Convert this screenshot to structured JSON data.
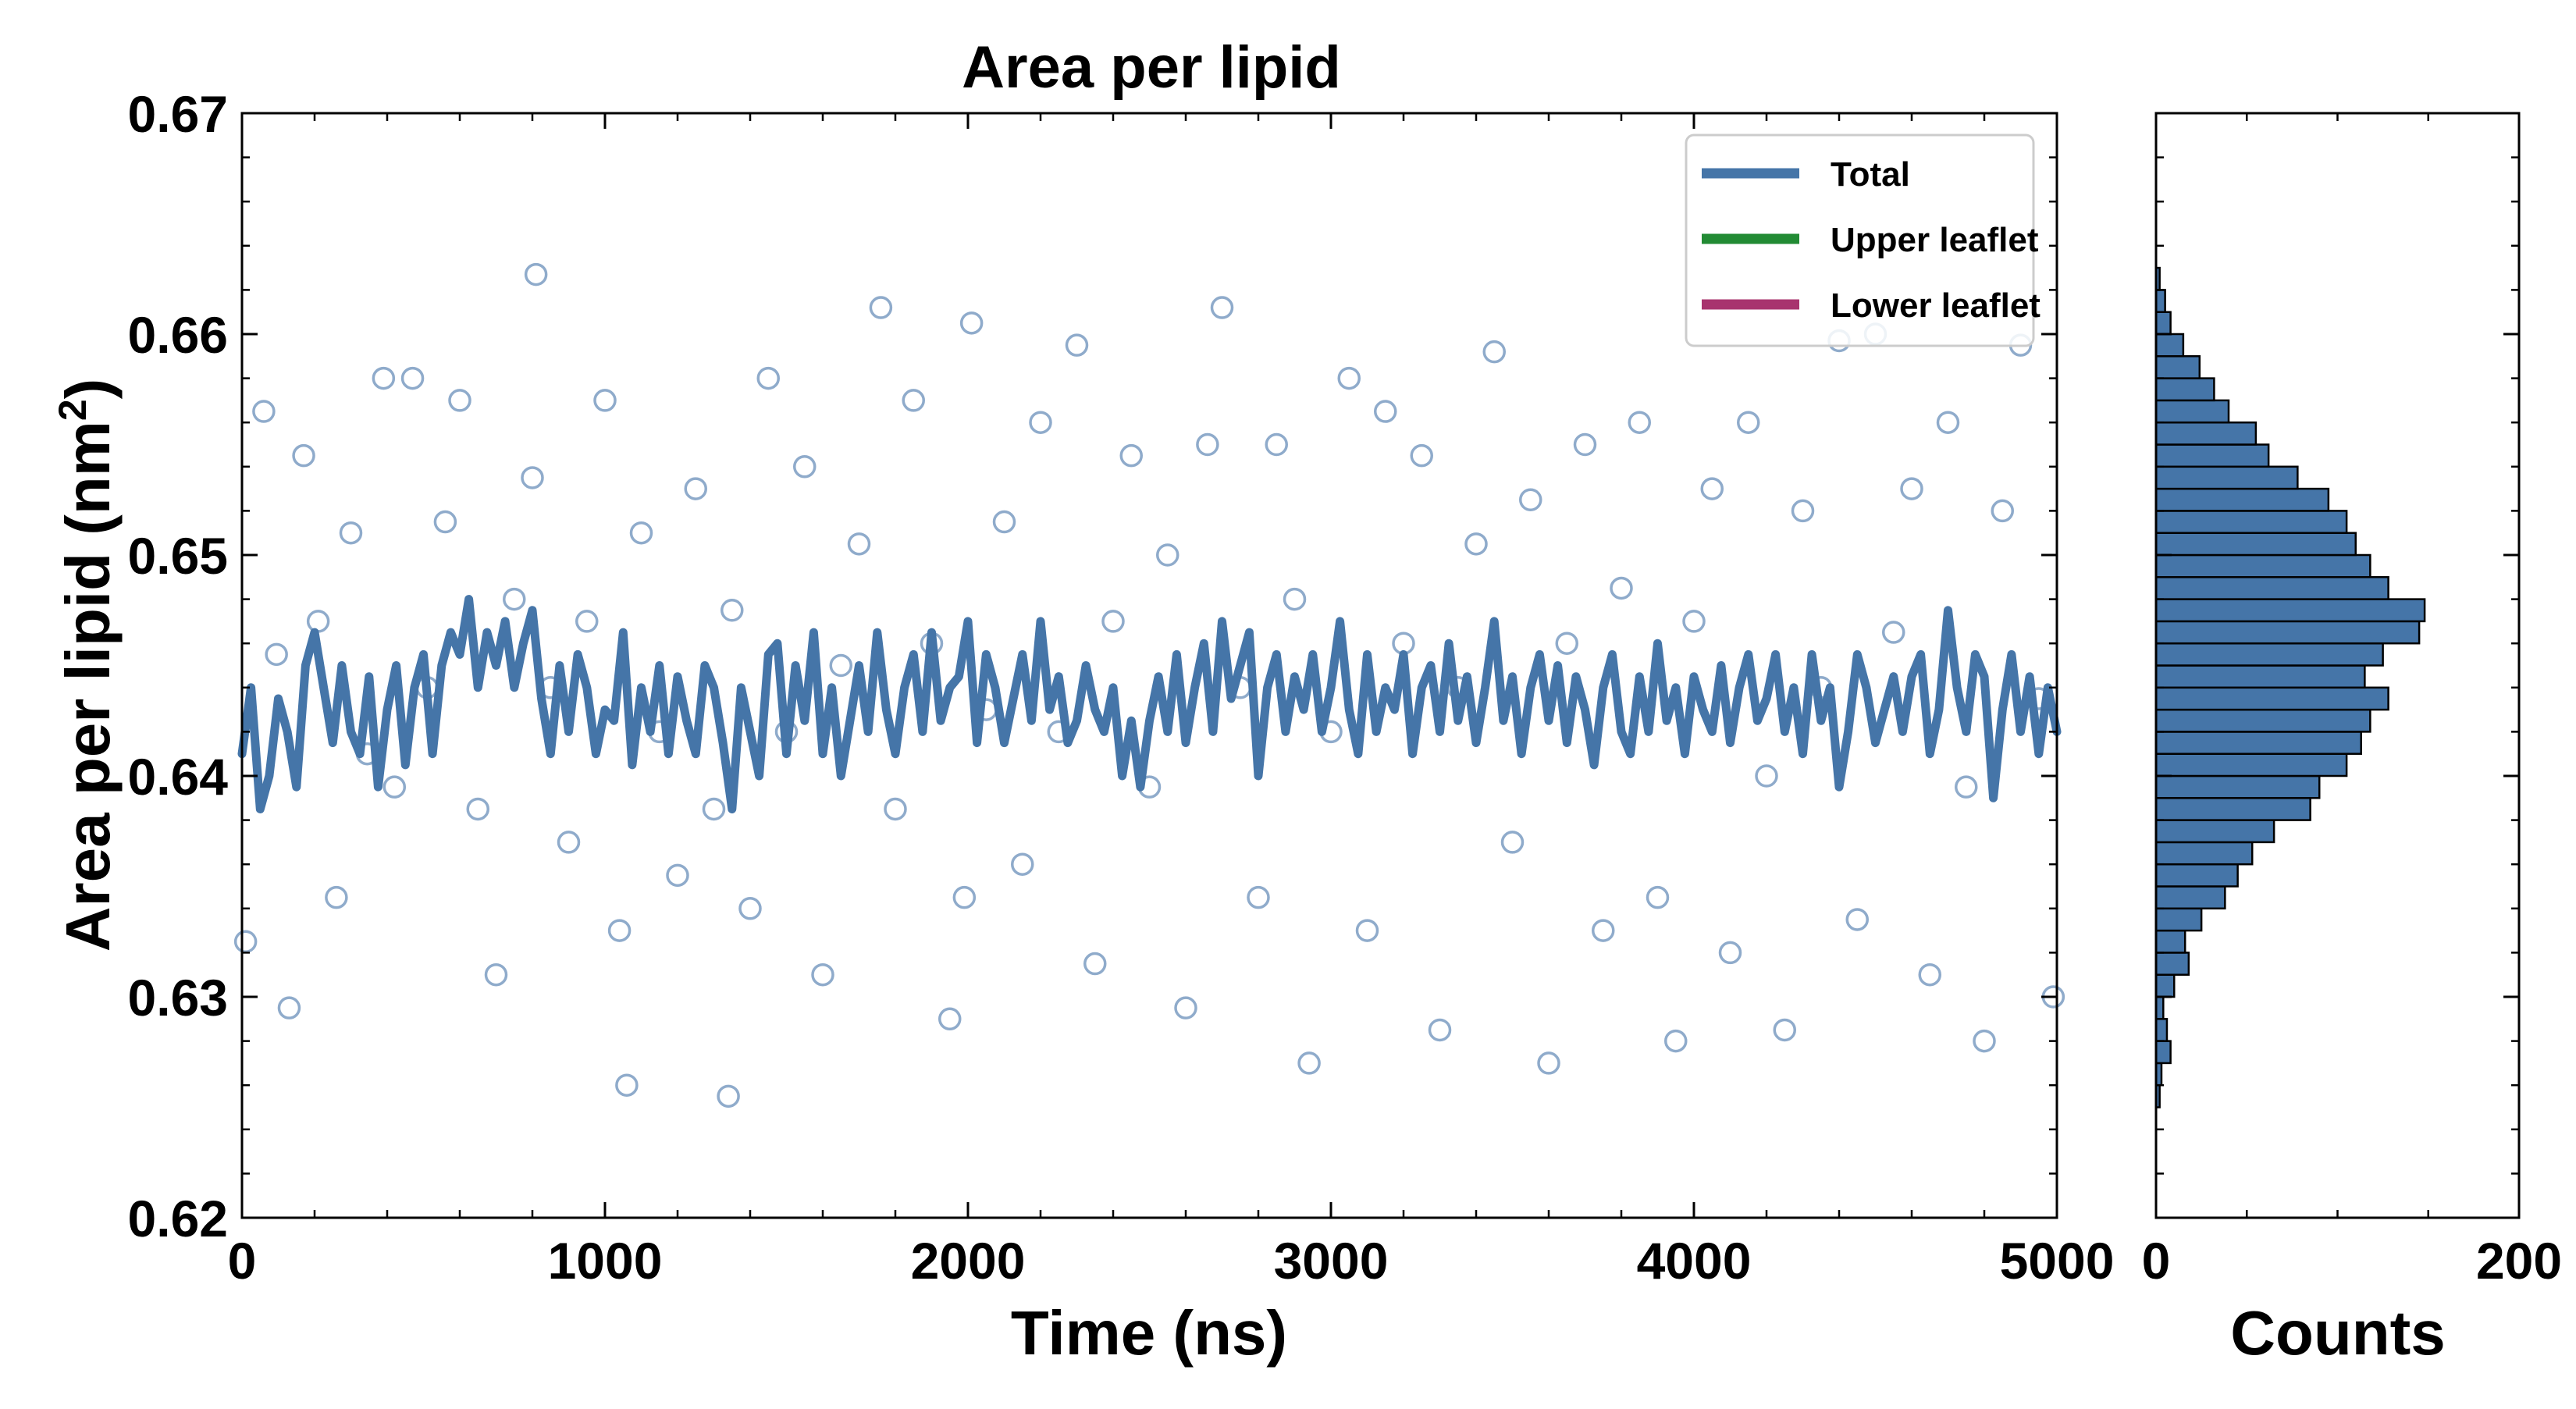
{
  "chart_data": {
    "type": "scatter",
    "title": "Area per lipid",
    "xlabel": "Time (ns)",
    "ylabel_main": "Area per lipid (nm",
    "ylabel_sup": "2",
    "ylabel_tail": ")",
    "xlim": [
      0,
      5000
    ],
    "ylim": [
      0.62,
      0.67
    ],
    "x_ticks": [
      0,
      1000,
      2000,
      3000,
      4000,
      5000
    ],
    "x_tick_labels": [
      "0",
      "1000",
      "2000",
      "3000",
      "4000",
      "5000"
    ],
    "y_ticks": [
      0.62,
      0.63,
      0.64,
      0.65,
      0.66,
      0.67
    ],
    "y_tick_labels": [
      "0.62",
      "0.63",
      "0.64",
      "0.65",
      "0.66",
      "0.67"
    ],
    "grid": false,
    "legend_position": "top-right",
    "legend": [
      {
        "label": "Total",
        "color": "#4575a8"
      },
      {
        "label": "Upper leaflet",
        "color": "#228b34"
      },
      {
        "label": "Lower leaflet",
        "color": "#a8336e"
      }
    ],
    "scatter_color": "#8fabcb",
    "scatter_marker": "open-circle",
    "scatter_sample": {
      "x": [
        10,
        60,
        95,
        130,
        170,
        210,
        260,
        300,
        345,
        390,
        420,
        470,
        510,
        560,
        600,
        650,
        700,
        750,
        800,
        810,
        850,
        900,
        950,
        1000,
        1040,
        1060,
        1100,
        1150,
        1200,
        1250,
        1300,
        1340,
        1350,
        1400,
        1450,
        1500,
        1550,
        1600,
        1650,
        1700,
        1760,
        1800,
        1850,
        1900,
        1950,
        1990,
        2010,
        2050,
        2100,
        2150,
        2200,
        2250,
        2300,
        2350,
        2400,
        2450,
        2500,
        2550,
        2600,
        2660,
        2700,
        2750,
        2800,
        2850,
        2900,
        2940,
        3000,
        3050,
        3100,
        3150,
        3200,
        3250,
        3300,
        3350,
        3400,
        3450,
        3500,
        3550,
        3600,
        3650,
        3700,
        3750,
        3800,
        3850,
        3900,
        3950,
        4000,
        4050,
        4100,
        4150,
        4200,
        4250,
        4300,
        4350,
        4400,
        4450,
        4500,
        4550,
        4600,
        4650,
        4700,
        4750,
        4800,
        4850,
        4900,
        4950,
        4990
      ],
      "y": [
        0.6325,
        0.6565,
        0.6455,
        0.6295,
        0.6545,
        0.647,
        0.6345,
        0.651,
        0.641,
        0.658,
        0.6395,
        0.658,
        0.644,
        0.6515,
        0.657,
        0.6385,
        0.631,
        0.648,
        0.6535,
        0.6627,
        0.644,
        0.637,
        0.647,
        0.657,
        0.633,
        0.626,
        0.651,
        0.642,
        0.6355,
        0.653,
        0.6385,
        0.6255,
        0.6475,
        0.634,
        0.658,
        0.642,
        0.654,
        0.631,
        0.645,
        0.6505,
        0.6612,
        0.6385,
        0.657,
        0.646,
        0.629,
        0.6345,
        0.6605,
        0.643,
        0.6515,
        0.636,
        0.656,
        0.642,
        0.6595,
        0.6315,
        0.647,
        0.6545,
        0.6395,
        0.65,
        0.6295,
        0.655,
        0.6612,
        0.644,
        0.6345,
        0.655,
        0.648,
        0.627,
        0.642,
        0.658,
        0.633,
        0.6565,
        0.646,
        0.6545,
        0.6285,
        0.644,
        0.6505,
        0.6592,
        0.637,
        0.6525,
        0.627,
        0.646,
        0.655,
        0.633,
        0.6485,
        0.656,
        0.6345,
        0.628,
        0.647,
        0.653,
        0.632,
        0.656,
        0.64,
        0.6285,
        0.652,
        0.644,
        0.6597,
        0.6335,
        0.66,
        0.6465,
        0.653,
        0.631,
        0.656,
        0.6395,
        0.628,
        0.652,
        0.6595,
        0.6435,
        0.63
      ]
    },
    "total_series": {
      "x": [
        0,
        25,
        50,
        75,
        100,
        125,
        150,
        175,
        200,
        225,
        250,
        275,
        300,
        325,
        350,
        375,
        400,
        425,
        450,
        475,
        500,
        525,
        550,
        575,
        600,
        625,
        650,
        675,
        700,
        725,
        750,
        775,
        800,
        825,
        850,
        875,
        900,
        925,
        950,
        975,
        1000,
        1025,
        1050,
        1075,
        1100,
        1125,
        1150,
        1175,
        1200,
        1225,
        1250,
        1275,
        1300,
        1325,
        1350,
        1375,
        1400,
        1425,
        1450,
        1475,
        1500,
        1525,
        1550,
        1575,
        1600,
        1625,
        1650,
        1675,
        1700,
        1725,
        1750,
        1775,
        1800,
        1825,
        1850,
        1875,
        1900,
        1925,
        1950,
        1975,
        2000,
        2025,
        2050,
        2075,
        2100,
        2125,
        2150,
        2175,
        2200,
        2225,
        2250,
        2275,
        2300,
        2325,
        2350,
        2375,
        2400,
        2425,
        2450,
        2475,
        2500,
        2525,
        2550,
        2575,
        2600,
        2625,
        2650,
        2675,
        2700,
        2725,
        2750,
        2775,
        2800,
        2825,
        2850,
        2875,
        2900,
        2925,
        2950,
        2975,
        3000,
        3025,
        3050,
        3075,
        3100,
        3125,
        3150,
        3175,
        3200,
        3225,
        3250,
        3275,
        3300,
        3325,
        3350,
        3375,
        3400,
        3425,
        3450,
        3475,
        3500,
        3525,
        3550,
        3575,
        3600,
        3625,
        3650,
        3675,
        3700,
        3725,
        3750,
        3775,
        3800,
        3825,
        3850,
        3875,
        3900,
        3925,
        3950,
        3975,
        4000,
        4025,
        4050,
        4075,
        4100,
        4125,
        4150,
        4175,
        4200,
        4225,
        4250,
        4275,
        4300,
        4325,
        4350,
        4375,
        4400,
        4425,
        4450,
        4475,
        4500,
        4525,
        4550,
        4575,
        4600,
        4625,
        4650,
        4675,
        4700,
        4725,
        4750,
        4775,
        4800,
        4825,
        4850,
        4875,
        4900,
        4925,
        4950,
        4975,
        5000
      ],
      "y": [
        0.641,
        0.644,
        0.6385,
        0.64,
        0.6435,
        0.642,
        0.6395,
        0.645,
        0.6465,
        0.644,
        0.6415,
        0.645,
        0.642,
        0.641,
        0.6445,
        0.6395,
        0.643,
        0.645,
        0.6405,
        0.644,
        0.6455,
        0.641,
        0.645,
        0.6465,
        0.6455,
        0.648,
        0.644,
        0.6465,
        0.645,
        0.647,
        0.644,
        0.646,
        0.6475,
        0.6435,
        0.641,
        0.645,
        0.642,
        0.6455,
        0.644,
        0.641,
        0.643,
        0.6425,
        0.6465,
        0.6405,
        0.644,
        0.642,
        0.645,
        0.641,
        0.6445,
        0.6425,
        0.641,
        0.645,
        0.644,
        0.6415,
        0.6385,
        0.644,
        0.642,
        0.64,
        0.6455,
        0.646,
        0.641,
        0.645,
        0.6425,
        0.6465,
        0.641,
        0.644,
        0.64,
        0.6425,
        0.645,
        0.642,
        0.6465,
        0.643,
        0.641,
        0.644,
        0.6455,
        0.642,
        0.6465,
        0.6425,
        0.644,
        0.6445,
        0.647,
        0.6415,
        0.6455,
        0.644,
        0.6415,
        0.6435,
        0.6455,
        0.6425,
        0.647,
        0.643,
        0.6445,
        0.6415,
        0.6425,
        0.645,
        0.643,
        0.642,
        0.644,
        0.64,
        0.6425,
        0.6395,
        0.6425,
        0.6445,
        0.642,
        0.6455,
        0.6415,
        0.644,
        0.646,
        0.642,
        0.647,
        0.6435,
        0.645,
        0.6465,
        0.64,
        0.644,
        0.6455,
        0.642,
        0.6445,
        0.643,
        0.6455,
        0.642,
        0.644,
        0.647,
        0.643,
        0.641,
        0.6455,
        0.642,
        0.644,
        0.643,
        0.6455,
        0.641,
        0.644,
        0.645,
        0.642,
        0.646,
        0.6425,
        0.6445,
        0.6415,
        0.644,
        0.647,
        0.6425,
        0.6445,
        0.641,
        0.644,
        0.6455,
        0.6425,
        0.645,
        0.6415,
        0.6445,
        0.643,
        0.6405,
        0.644,
        0.6455,
        0.642,
        0.641,
        0.6445,
        0.642,
        0.646,
        0.6425,
        0.644,
        0.641,
        0.6445,
        0.643,
        0.642,
        0.645,
        0.6415,
        0.644,
        0.6455,
        0.6425,
        0.6435,
        0.6455,
        0.642,
        0.644,
        0.641,
        0.6455,
        0.6425,
        0.644,
        0.6395,
        0.642,
        0.6455,
        0.644,
        0.6415,
        0.643,
        0.6445,
        0.642,
        0.6445,
        0.6455,
        0.641,
        0.643,
        0.6475,
        0.644,
        0.642,
        0.6455,
        0.6445,
        0.639,
        0.643,
        0.6455,
        0.642,
        0.6445,
        0.641,
        0.644,
        0.642
      ]
    },
    "histogram": {
      "xlabel": "Counts",
      "xlim": [
        0,
        200
      ],
      "x_ticks": [
        0,
        200
      ],
      "x_tick_labels": [
        "0",
        "200"
      ],
      "bar_color": "#4575a8",
      "bin_centers": [
        0.6255,
        0.6265,
        0.6275,
        0.6285,
        0.6295,
        0.6305,
        0.6315,
        0.6325,
        0.6335,
        0.6345,
        0.6355,
        0.6365,
        0.6375,
        0.6385,
        0.6395,
        0.6405,
        0.6415,
        0.6425,
        0.6435,
        0.6445,
        0.6455,
        0.6465,
        0.6475,
        0.6485,
        0.6495,
        0.6505,
        0.6515,
        0.6525,
        0.6535,
        0.6545,
        0.6555,
        0.6565,
        0.6575,
        0.6585,
        0.6595,
        0.6605,
        0.6615,
        0.6625
      ],
      "counts": [
        2,
        3,
        8,
        6,
        4,
        10,
        18,
        16,
        25,
        38,
        45,
        53,
        65,
        85,
        90,
        105,
        113,
        118,
        128,
        115,
        125,
        145,
        148,
        128,
        118,
        110,
        105,
        95,
        78,
        62,
        55,
        40,
        32,
        24,
        15,
        8,
        5,
        2
      ]
    }
  }
}
